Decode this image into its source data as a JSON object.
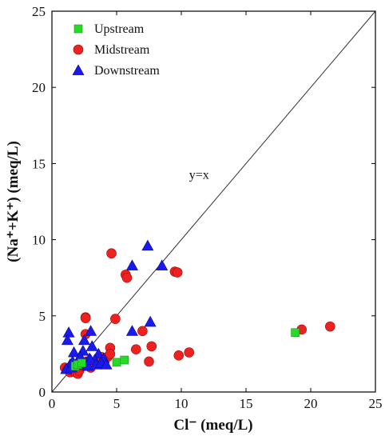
{
  "chart_data": {
    "type": "scatter",
    "title": "",
    "xlabel": "Cl⁻ (meq/L)",
    "ylabel": "(Na⁺+K⁺) (meq/L)",
    "xlim": [
      0,
      25
    ],
    "ylim": [
      0,
      25
    ],
    "xticks": [
      "0",
      "5",
      "10",
      "15",
      "20",
      "25"
    ],
    "yticks": [
      "0",
      "5",
      "10",
      "15",
      "20",
      "25"
    ],
    "grid": false,
    "legend_position": "top-left",
    "reference_line": {
      "label": "y=x",
      "from": [
        0,
        0
      ],
      "to": [
        25,
        25
      ]
    },
    "series": [
      {
        "name": "Upstream",
        "marker": "square",
        "color": "#22dd22",
        "points": [
          [
            1.8,
            1.7
          ],
          [
            2.0,
            1.8
          ],
          [
            2.3,
            1.9
          ],
          [
            5.0,
            1.95
          ],
          [
            5.6,
            2.1
          ],
          [
            18.8,
            3.9
          ]
        ]
      },
      {
        "name": "Midstream",
        "marker": "circle",
        "color": "#ee2020",
        "points": [
          [
            4.6,
            9.1
          ],
          [
            5.7,
            7.7
          ],
          [
            5.8,
            7.5
          ],
          [
            9.5,
            7.9
          ],
          [
            9.7,
            7.85
          ],
          [
            2.6,
            4.9
          ],
          [
            2.6,
            4.85
          ],
          [
            4.9,
            4.8
          ],
          [
            2.6,
            3.8
          ],
          [
            4.5,
            2.9
          ],
          [
            1.0,
            1.6
          ],
          [
            1.2,
            1.5
          ],
          [
            1.4,
            1.3
          ],
          [
            1.6,
            1.4
          ],
          [
            1.8,
            1.3
          ],
          [
            2.0,
            1.2
          ],
          [
            2.1,
            1.4
          ],
          [
            2.4,
            1.7
          ],
          [
            2.7,
            2.0
          ],
          [
            3.0,
            1.6
          ],
          [
            3.2,
            1.9
          ],
          [
            3.5,
            2.1
          ],
          [
            3.8,
            2.3
          ],
          [
            4.0,
            2.0
          ],
          [
            4.3,
            2.3
          ],
          [
            4.5,
            2.5
          ],
          [
            6.5,
            2.8
          ],
          [
            7.0,
            4.0
          ],
          [
            7.5,
            2.0
          ],
          [
            7.7,
            3.0
          ],
          [
            9.8,
            2.4
          ],
          [
            10.6,
            2.6
          ],
          [
            19.3,
            4.1
          ],
          [
            21.5,
            4.3
          ]
        ]
      },
      {
        "name": "Downstream",
        "marker": "triangle",
        "color": "#1a1aee",
        "points": [
          [
            7.4,
            9.6
          ],
          [
            6.2,
            8.3
          ],
          [
            8.5,
            8.3
          ],
          [
            7.6,
            4.6
          ],
          [
            6.2,
            4.0
          ],
          [
            1.3,
            3.9
          ],
          [
            3.0,
            4.0
          ],
          [
            1.2,
            3.4
          ],
          [
            2.5,
            3.4
          ],
          [
            3.1,
            3.0
          ],
          [
            1.7,
            2.6
          ],
          [
            2.4,
            2.7
          ],
          [
            3.6,
            2.5
          ],
          [
            2.2,
            2.3
          ],
          [
            2.9,
            2.2
          ],
          [
            3.3,
            2.1
          ],
          [
            4.0,
            2.2
          ],
          [
            1.4,
            1.8
          ],
          [
            1.6,
            2.0
          ],
          [
            1.9,
            1.9
          ],
          [
            2.1,
            1.8
          ],
          [
            2.6,
            1.9
          ],
          [
            2.8,
            1.7
          ],
          [
            3.0,
            2.1
          ],
          [
            3.4,
            1.8
          ],
          [
            3.8,
            1.9
          ],
          [
            4.2,
            1.8
          ],
          [
            1.1,
            1.5
          ],
          [
            1.5,
            1.6
          ]
        ]
      }
    ]
  }
}
